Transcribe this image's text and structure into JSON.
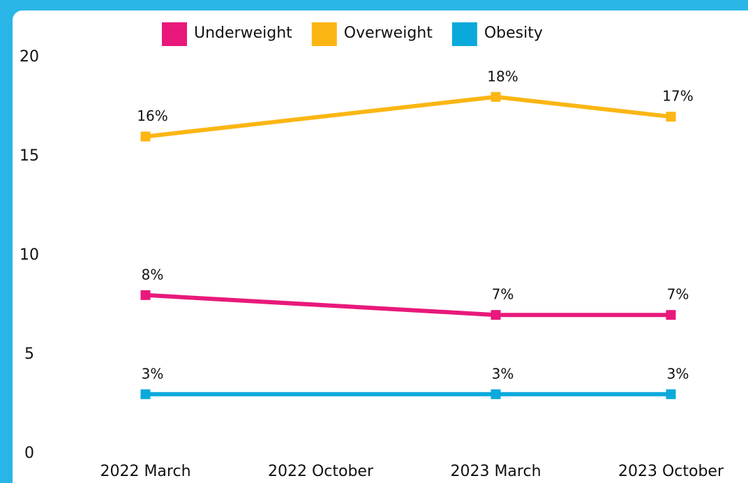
{
  "chart_data": {
    "type": "line",
    "x": [
      0,
      2,
      3
    ],
    "xlim": [
      -0.5,
      3.5
    ],
    "xticks": [
      {
        "value": 0,
        "label": "2022 March"
      },
      {
        "value": 1,
        "label": "2022 October"
      },
      {
        "value": 2,
        "label": "2023 March"
      },
      {
        "value": 3,
        "label": "2023 October"
      }
    ],
    "ylim": [
      0,
      20
    ],
    "yticks": [
      0,
      5,
      10,
      15,
      20
    ],
    "grid": false,
    "legend": "top",
    "series": [
      {
        "name": "Underweight",
        "color": "#e8197b",
        "values": [
          8,
          7,
          7
        ],
        "value_labels": [
          "8%",
          "7%",
          "7%"
        ]
      },
      {
        "name": "Overweight",
        "color": "#fbb614",
        "values": [
          16,
          18,
          17
        ],
        "value_labels": [
          "16%",
          "18%",
          "17%"
        ]
      },
      {
        "name": "Obesity",
        "color": "#0aa9dc",
        "values": [
          3,
          3,
          3
        ],
        "value_labels": [
          "3%",
          "3%",
          "3%"
        ]
      }
    ]
  }
}
